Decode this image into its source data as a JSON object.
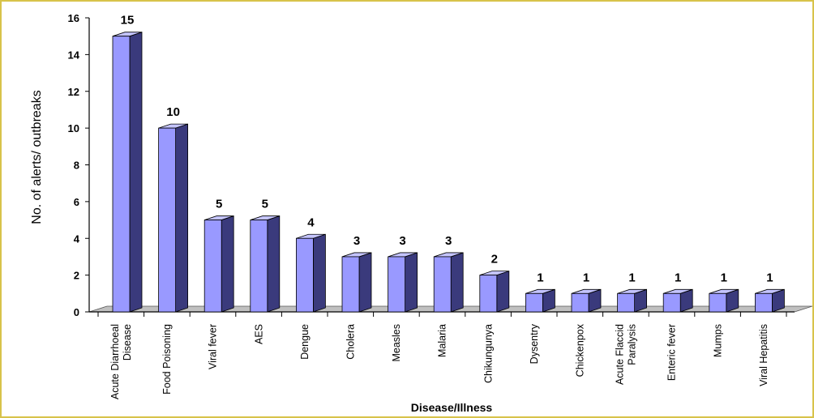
{
  "chart_data": {
    "type": "bar",
    "title": "",
    "xlabel": "Disease/Illness",
    "ylabel": "No. of alerts/ outbreaks",
    "ylim": [
      0,
      16
    ],
    "yticks": [
      "0",
      "2",
      "4",
      "6",
      "8",
      "10",
      "12",
      "14",
      "16"
    ],
    "grid": false,
    "legend": "none",
    "categories": [
      [
        "Acute Diarrhoeal",
        "Disease"
      ],
      [
        "Food Poisoning"
      ],
      [
        "Viral fever"
      ],
      [
        "AES"
      ],
      [
        "Dengue"
      ],
      [
        "Cholera"
      ],
      [
        "Measles"
      ],
      [
        "Malaria"
      ],
      [
        "Chikungunya"
      ],
      [
        "Dysentry"
      ],
      [
        "Chickenpox"
      ],
      [
        "Acute Flaccid",
        "Paralysis"
      ],
      [
        "Enteric fever"
      ],
      [
        "Mumps"
      ],
      [
        "Viral Hepatitis"
      ]
    ],
    "values": [
      15,
      10,
      5,
      5,
      4,
      3,
      3,
      3,
      2,
      1,
      1,
      1,
      1,
      1,
      1
    ],
    "colors": {
      "bar_front": "#9999ff",
      "bar_side": "#3a3a7c",
      "bar_top": "#c4c4ff",
      "floor": "#c0c0c0"
    }
  }
}
